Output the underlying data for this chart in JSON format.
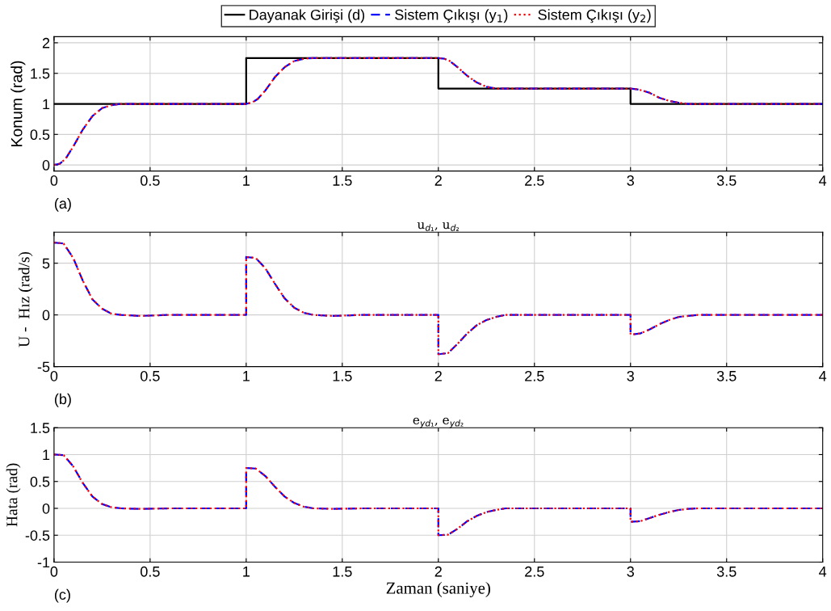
{
  "chart_data": [
    {
      "type": "line",
      "ylabel": "Konum (rad)",
      "annotations": [
        "(a)"
      ],
      "legend": "top",
      "grid": true,
      "xlim": [
        0,
        4
      ],
      "xticks": [
        0,
        0.5,
        1,
        1.5,
        2,
        2.5,
        3,
        3.5,
        4
      ],
      "ylim": [
        -0.1,
        2.1
      ],
      "yticks": [
        0,
        0.5,
        1,
        1.5,
        2
      ],
      "x": [
        0,
        0.03,
        0.06,
        0.1,
        0.15,
        0.2,
        0.25,
        0.3,
        0.35,
        0.5,
        1,
        1.03,
        1.06,
        1.1,
        1.15,
        1.2,
        1.25,
        1.3,
        1.35,
        1.5,
        2,
        2.03,
        2.06,
        2.1,
        2.15,
        2.2,
        2.25,
        2.3,
        2.5,
        3,
        3.03,
        3.06,
        3.1,
        3.15,
        3.2,
        3.25,
        3.3,
        3.5,
        4
      ],
      "series": [
        {
          "name": "Dayanak Girişi (d)",
          "color": "#000000",
          "line_style": "solid",
          "x": [
            0,
            1,
            1,
            2,
            2,
            3,
            3,
            4
          ],
          "values": [
            1,
            1,
            1.75,
            1.75,
            1.25,
            1.25,
            1,
            1
          ]
        },
        {
          "name": "Sistem Çıkışı (y$_{1}$)",
          "color": "#0000ff",
          "line_style": "dashed",
          "values": [
            0,
            0.02,
            0.1,
            0.3,
            0.58,
            0.8,
            0.93,
            0.98,
            1.0,
            1.0,
            1.0,
            1.02,
            1.08,
            1.22,
            1.44,
            1.6,
            1.7,
            1.74,
            1.75,
            1.75,
            1.75,
            1.74,
            1.7,
            1.6,
            1.46,
            1.35,
            1.28,
            1.25,
            1.25,
            1.25,
            1.24,
            1.22,
            1.18,
            1.1,
            1.05,
            1.02,
            1.0,
            1.0,
            1.0
          ]
        },
        {
          "name": "Sistem Çıkışı (y$_{2}$)",
          "color": "#ff0000",
          "line_style": "dotted",
          "values": [
            0,
            0.02,
            0.1,
            0.3,
            0.58,
            0.8,
            0.93,
            0.98,
            1.0,
            1.0,
            1.0,
            1.02,
            1.08,
            1.22,
            1.44,
            1.6,
            1.7,
            1.74,
            1.75,
            1.75,
            1.75,
            1.74,
            1.7,
            1.6,
            1.46,
            1.35,
            1.28,
            1.25,
            1.25,
            1.25,
            1.24,
            1.22,
            1.18,
            1.1,
            1.05,
            1.02,
            1.0,
            1.0,
            1.0
          ]
        }
      ]
    },
    {
      "type": "line",
      "title": "u$_{d₁}$, u$_{d₂}$",
      "ylabel": "U -  Hız (rad/s)",
      "annotations": [
        "(b)"
      ],
      "grid": true,
      "xlim": [
        0,
        4
      ],
      "xticks": [
        0,
        0.5,
        1,
        1.5,
        2,
        2.5,
        3,
        3.5,
        4
      ],
      "ylim": [
        -5,
        8
      ],
      "yticks": [
        -5,
        0,
        5
      ],
      "x": [
        0,
        0.05,
        0.1,
        0.15,
        0.2,
        0.25,
        0.3,
        0.35,
        0.45,
        0.6,
        1,
        1,
        1.05,
        1.1,
        1.15,
        1.2,
        1.25,
        1.3,
        1.35,
        1.45,
        1.6,
        2,
        2,
        2.05,
        2.1,
        2.15,
        2.2,
        2.25,
        2.3,
        2.35,
        2.5,
        3,
        3,
        3.05,
        3.1,
        3.15,
        3.2,
        3.25,
        3.3,
        3.35,
        3.5,
        4
      ],
      "series": [
        {
          "color": "#0000ff",
          "line_style": "dashed",
          "values": [
            7,
            6.9,
            5.5,
            3.3,
            1.5,
            0.6,
            0.1,
            0,
            -0.1,
            0,
            0,
            5.6,
            5.5,
            4.5,
            3,
            1.6,
            0.7,
            0.2,
            0,
            -0.1,
            0,
            0,
            -3.8,
            -3.7,
            -2.8,
            -1.8,
            -1,
            -0.5,
            -0.2,
            0,
            0,
            0,
            -1.9,
            -1.8,
            -1.4,
            -0.9,
            -0.5,
            -0.2,
            -0.1,
            0,
            0,
            0
          ]
        },
        {
          "color": "#ff0000",
          "line_style": "dotted",
          "values": [
            7,
            6.9,
            5.5,
            3.3,
            1.5,
            0.6,
            0.1,
            0,
            -0.1,
            0,
            0,
            5.6,
            5.5,
            4.5,
            3,
            1.6,
            0.7,
            0.2,
            0,
            -0.1,
            0,
            0,
            -3.8,
            -3.7,
            -2.8,
            -1.8,
            -1,
            -0.5,
            -0.2,
            0,
            0,
            0,
            -1.9,
            -1.8,
            -1.4,
            -0.9,
            -0.5,
            -0.2,
            -0.1,
            0,
            0,
            0
          ]
        }
      ]
    },
    {
      "type": "line",
      "title": "e$_{yd₁}$, e$_{yd₂}$",
      "xlabel": "Zaman (saniye)",
      "ylabel": "Hata (rad)",
      "annotations": [
        "(c)"
      ],
      "grid": true,
      "xlim": [
        0,
        4
      ],
      "xticks": [
        0,
        0.5,
        1,
        1.5,
        2,
        2.5,
        3,
        3.5,
        4
      ],
      "ylim": [
        -1,
        1.5
      ],
      "yticks": [
        -1,
        -0.5,
        0,
        0.5,
        1,
        1.5
      ],
      "x": [
        0,
        0.05,
        0.1,
        0.15,
        0.2,
        0.25,
        0.3,
        0.35,
        0.45,
        0.6,
        1,
        1,
        1.05,
        1.1,
        1.15,
        1.2,
        1.25,
        1.3,
        1.35,
        1.45,
        1.6,
        2,
        2,
        2.05,
        2.1,
        2.15,
        2.2,
        2.25,
        2.3,
        2.35,
        2.5,
        3,
        3,
        3.05,
        3.1,
        3.15,
        3.2,
        3.25,
        3.3,
        3.35,
        3.5,
        4
      ],
      "series": [
        {
          "color": "#0000ff",
          "line_style": "dashed",
          "values": [
            1,
            0.99,
            0.78,
            0.47,
            0.22,
            0.08,
            0.02,
            0,
            -0.01,
            0,
            0,
            0.75,
            0.74,
            0.6,
            0.4,
            0.22,
            0.1,
            0.03,
            0,
            -0.01,
            0,
            0,
            -0.5,
            -0.49,
            -0.38,
            -0.24,
            -0.14,
            -0.07,
            -0.03,
            0,
            0,
            0,
            -0.25,
            -0.24,
            -0.18,
            -0.12,
            -0.07,
            -0.03,
            -0.01,
            0,
            0,
            0
          ]
        },
        {
          "color": "#ff0000",
          "line_style": "dotted",
          "values": [
            1,
            0.99,
            0.78,
            0.47,
            0.22,
            0.08,
            0.02,
            0,
            -0.01,
            0,
            0,
            0.75,
            0.74,
            0.6,
            0.4,
            0.22,
            0.1,
            0.03,
            0,
            -0.01,
            0,
            0,
            -0.5,
            -0.49,
            -0.38,
            -0.24,
            -0.14,
            -0.07,
            -0.03,
            0,
            0,
            0,
            -0.25,
            -0.24,
            -0.18,
            -0.12,
            -0.07,
            -0.03,
            -0.01,
            0,
            0,
            0
          ]
        }
      ]
    }
  ]
}
